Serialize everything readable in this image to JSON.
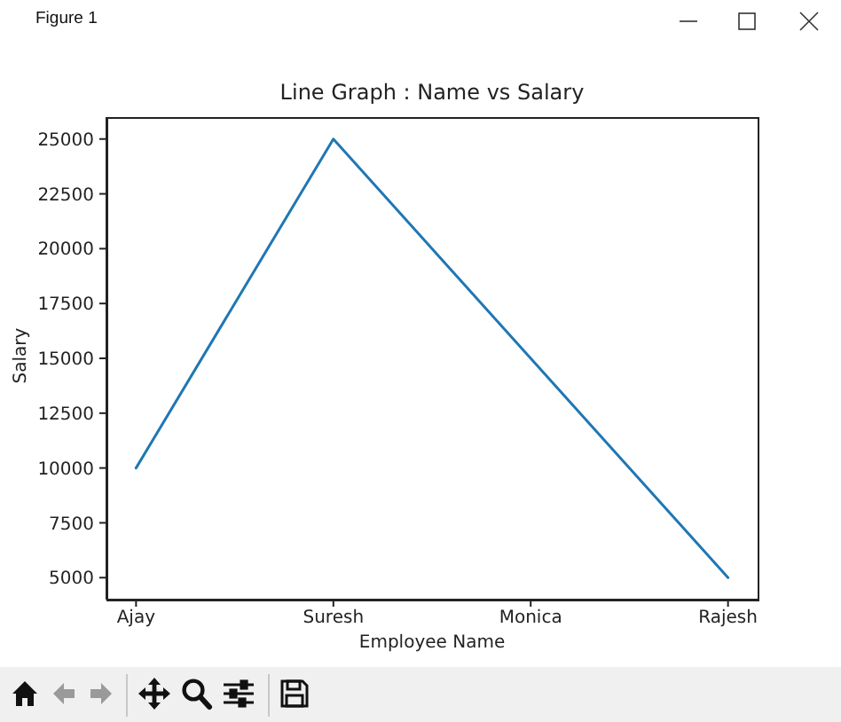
{
  "chart_data": {
    "type": "line",
    "title": "Line Graph : Name vs Salary",
    "xlabel": "Employee Name",
    "ylabel": "Salary",
    "categories": [
      "Ajay",
      "Suresh",
      "Monica",
      "Rajesh"
    ],
    "series": [
      {
        "color": "#1f77b4",
        "values": [
          10000,
          25000,
          15000,
          5000
        ]
      }
    ],
    "ylim": [
      4000,
      26000
    ],
    "yticks": [
      5000,
      7500,
      10000,
      12500,
      15000,
      17500,
      20000,
      22500,
      25000
    ],
    "line_style": "solid",
    "annotations": [
      "Figure 1"
    ]
  }
}
